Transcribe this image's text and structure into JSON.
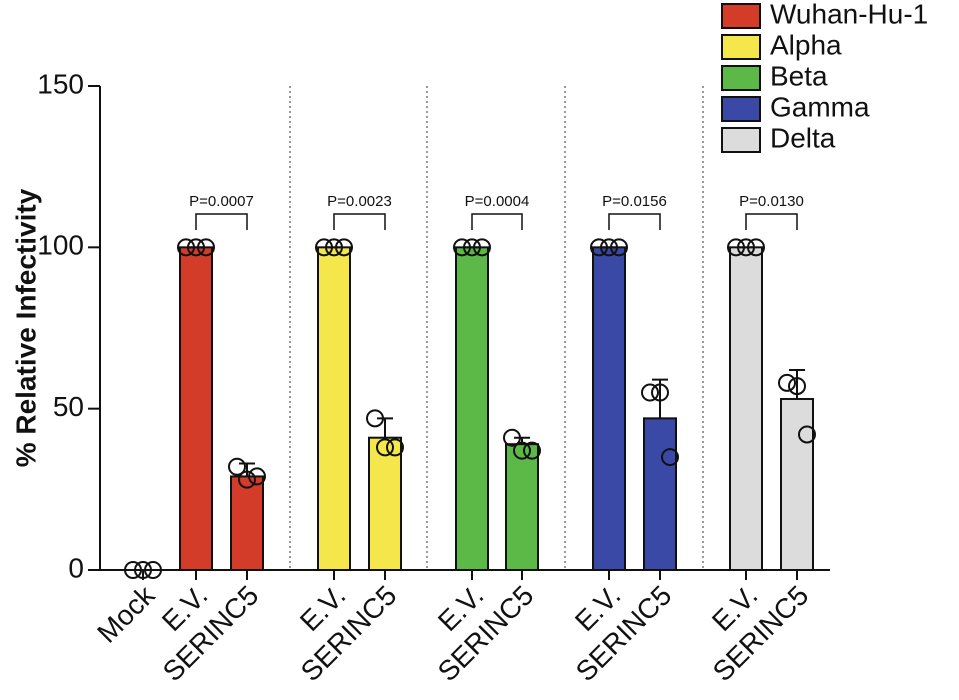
{
  "chart_data": {
    "type": "bar",
    "y_label": "% Relative Infectivity",
    "categories": [
      "Mock",
      "E.V.",
      "SERINC5",
      "E.V.",
      "SERINC5",
      "E.V.",
      "SERINC5",
      "E.V.",
      "SERINC5",
      "E.V.",
      "SERINC5"
    ],
    "mock_points": [
      0,
      0,
      0
    ],
    "series": [
      {
        "name": "Wuhan-Hu-1",
        "color": "#d43c2a",
        "values": [
          null,
          100,
          29,
          null,
          null,
          null,
          null,
          null,
          null,
          null,
          null
        ],
        "errors": [
          null,
          0,
          4,
          null,
          null,
          null,
          null,
          null,
          null,
          null,
          null
        ],
        "points": [
          null,
          [
            100,
            100,
            100
          ],
          [
            32,
            28,
            29
          ],
          null,
          null,
          null,
          null,
          null,
          null,
          null,
          null
        ]
      },
      {
        "name": "Alpha",
        "color": "#f5e64b",
        "values": [
          null,
          null,
          null,
          100,
          41,
          null,
          null,
          null,
          null,
          null,
          null
        ],
        "errors": [
          null,
          null,
          null,
          0,
          6,
          null,
          null,
          null,
          null,
          null,
          null
        ],
        "points": [
          null,
          null,
          null,
          [
            100,
            100,
            100
          ],
          [
            47,
            38,
            38
          ],
          null,
          null,
          null,
          null,
          null,
          null
        ]
      },
      {
        "name": "Beta",
        "color": "#5cb947",
        "values": [
          null,
          null,
          null,
          null,
          null,
          100,
          39,
          null,
          null,
          null,
          null
        ],
        "errors": [
          null,
          null,
          null,
          null,
          null,
          0,
          2,
          null,
          null,
          null,
          null
        ],
        "points": [
          null,
          null,
          null,
          null,
          null,
          [
            100,
            100,
            100
          ],
          [
            41,
            37,
            37
          ],
          null,
          null,
          null,
          null
        ]
      },
      {
        "name": "Gamma",
        "color": "#3a48a6",
        "values": [
          null,
          null,
          null,
          null,
          null,
          null,
          null,
          100,
          47,
          null,
          null
        ],
        "errors": [
          null,
          null,
          null,
          null,
          null,
          null,
          null,
          0,
          12,
          null,
          null
        ],
        "points": [
          null,
          null,
          null,
          null,
          null,
          null,
          null,
          [
            100,
            100,
            100
          ],
          [
            55,
            55,
            35
          ],
          null,
          null
        ]
      },
      {
        "name": "Delta",
        "color": "#dcdcdc",
        "values": [
          null,
          null,
          null,
          null,
          null,
          null,
          null,
          null,
          null,
          100,
          53
        ],
        "errors": [
          null,
          null,
          null,
          null,
          null,
          null,
          null,
          null,
          null,
          0,
          9
        ],
        "points": [
          null,
          null,
          null,
          null,
          null,
          null,
          null,
          null,
          null,
          [
            100,
            100,
            100
          ],
          [
            58,
            57,
            42
          ]
        ]
      }
    ],
    "annotations": [
      "P=0.0007",
      "P=0.0023",
      "P=0.0004",
      "P=0.0156",
      "P=0.0130"
    ],
    "ylim": [
      0,
      150
    ],
    "yticks": [
      0,
      50,
      100,
      150
    ],
    "legend": "top-right"
  }
}
